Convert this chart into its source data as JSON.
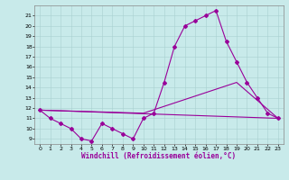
{
  "xlabel": "Windchill (Refroidissement éolien,°C)",
  "xlim": [
    -0.5,
    23.5
  ],
  "ylim": [
    8.5,
    22
  ],
  "xticks": [
    0,
    1,
    2,
    3,
    4,
    5,
    6,
    7,
    8,
    9,
    10,
    11,
    12,
    13,
    14,
    15,
    16,
    17,
    18,
    19,
    20,
    21,
    22,
    23
  ],
  "yticks": [
    9,
    10,
    11,
    12,
    13,
    14,
    15,
    16,
    17,
    18,
    19,
    20,
    21
  ],
  "bg_color": "#c8eaea",
  "line_color": "#990099",
  "line1_x": [
    0,
    1,
    2,
    3,
    4,
    5,
    6,
    7,
    8,
    9,
    10,
    11,
    12,
    13,
    14,
    15,
    16,
    17,
    18,
    19,
    20,
    21,
    22,
    23
  ],
  "line1_y": [
    11.8,
    11,
    10.5,
    10,
    9,
    8.8,
    10.5,
    10,
    9.5,
    9,
    11,
    11.5,
    14.5,
    18,
    20,
    20.5,
    21,
    21.5,
    18.5,
    16.5,
    14.5,
    13,
    11.5,
    11
  ],
  "line2_x": [
    0,
    10,
    19,
    23
  ],
  "line2_y": [
    11.8,
    11.5,
    14.5,
    11
  ],
  "line3_x": [
    0,
    23
  ],
  "line3_y": [
    11.8,
    11
  ],
  "marker": "D",
  "marker_size": 2,
  "linewidth": 0.8,
  "xlabel_fontsize": 5.5,
  "tick_fontsize": 4.5
}
